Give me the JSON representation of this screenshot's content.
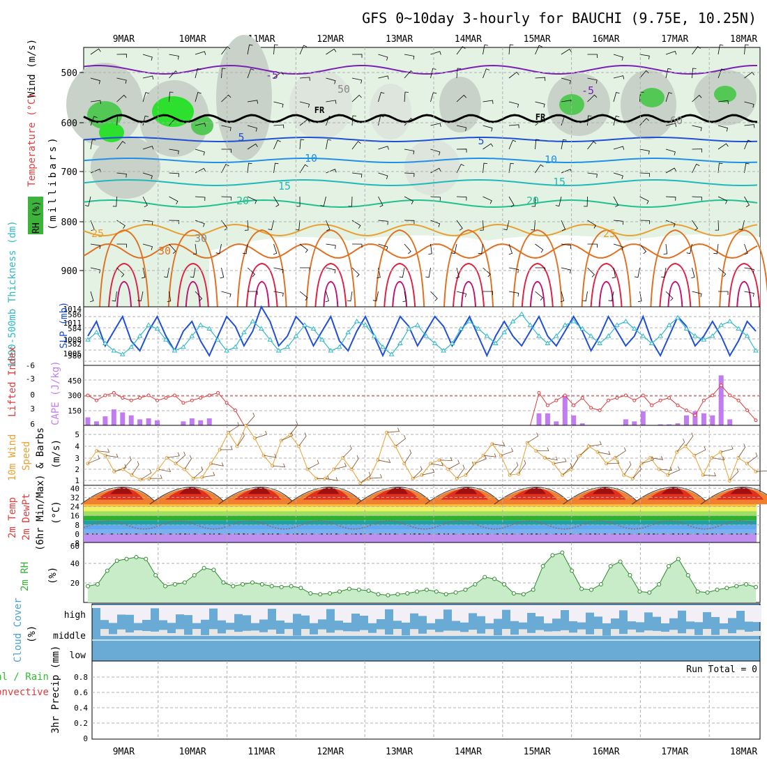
{
  "title": "GFS 0~10day 3-hourly for BAUCHI (9.75E, 10.25N)",
  "dates": [
    "9MAR",
    "10MAR",
    "11MAR",
    "12MAR",
    "13MAR",
    "14MAR",
    "15MAR",
    "16MAR",
    "17MAR",
    "18MAR"
  ],
  "colors": {
    "grid": "#b0b0b0",
    "purple": "#7a1fb5",
    "blue": "#1f4fd6",
    "teal": "#2fb8c8",
    "temp_red": "#e04040",
    "li_red": "#e03a3a",
    "cape": "#c27cf2",
    "orange": "#e8a030",
    "rh_green": "#37b037",
    "cloud_blue": "#6aabd6",
    "cloud_white": "#f2f0f6",
    "precip_green": "#2fbf2f"
  },
  "panels": {
    "upper_air": {
      "label_rh": "RH (%)",
      "label_temp": "Temperature (°C)",
      "label_wind": "Wind (m/s)",
      "axis_label": "(millibars)",
      "yticks": [
        "500",
        "600",
        "700",
        "800",
        "900"
      ],
      "contour_labels": [
        "-5",
        "FR",
        "5",
        "10",
        "15",
        "20",
        "25",
        "30",
        "FR",
        "-5",
        "5",
        "10",
        "15",
        "20",
        "25",
        "50",
        "30",
        "60"
      ]
    },
    "slp": {
      "label_thickness": "1000-500mb Thickness (dm)",
      "label_slp": "SLP (mb)",
      "left_ticks": [
        "586",
        "584",
        "582",
        "580"
      ],
      "right_ticks": [
        "1014",
        "1011",
        "1008",
        "1005"
      ]
    },
    "cape": {
      "label_li": "Lifted Index",
      "label_cape": "CAPE (J/kg)",
      "left_ticks": [
        "-6",
        "-3",
        "0",
        "3",
        "6"
      ],
      "right_ticks": [
        "450",
        "300",
        "150"
      ]
    },
    "wind10m": {
      "label_a": "10m Wind",
      "label_b": "Speed",
      "label_c": "& Barbs",
      "unit": "(m/s)",
      "ticks": [
        "5",
        "4",
        "3",
        "2",
        "1"
      ]
    },
    "temp2m": {
      "label_a": "2m Temp",
      "label_b": "2m DewPt",
      "label_c": "(6hr Min/Max)",
      "unit": "(°C)",
      "ticks": [
        "40",
        "32",
        "24",
        "16",
        "8",
        "0",
        "-8"
      ]
    },
    "rh2m": {
      "label": "2m RH",
      "unit": "(%)",
      "ticks": [
        "60",
        "40",
        "20"
      ]
    },
    "cloud": {
      "label": "Cloud Cover",
      "unit": "(%)",
      "levels": [
        "high",
        "middle",
        "low"
      ]
    },
    "precip": {
      "label_a": "3hr Precip (mm)",
      "label_b": "Total / Rain",
      "label_c": "Convective",
      "run_total": "Run Total = 0",
      "ticks": [
        "0.8",
        "0.6",
        "0.4",
        "0.2",
        "0"
      ]
    }
  },
  "chart_data": {
    "type": "line",
    "title": "GFS 0~10day 3-hourly for BAUCHI (9.75E, 10.25N)",
    "x": [
      "9MAR",
      "10MAR",
      "11MAR",
      "12MAR",
      "13MAR",
      "14MAR",
      "15MAR",
      "16MAR",
      "17MAR",
      "18MAR"
    ],
    "slp_mb": [
      1008,
      1011,
      1006,
      1009,
      1012,
      1007,
      1005,
      1009,
      1012,
      1008,
      1005,
      1009,
      1011,
      1007,
      1004,
      1008,
      1012,
      1010,
      1006,
      1009,
      1014,
      1011,
      1006,
      1008,
      1012,
      1010,
      1006,
      1009,
      1012,
      1007,
      1005,
      1009,
      1012,
      1008,
      1004,
      1008,
      1012,
      1010,
      1006,
      1009,
      1012,
      1010,
      1006,
      1009,
      1012,
      1008,
      1004,
      1008,
      1011,
      1008,
      1006,
      1009,
      1012,
      1008,
      1006,
      1009,
      1012,
      1009,
      1005,
      1008,
      1012,
      1009,
      1006,
      1008,
      1012,
      1007,
      1004,
      1008,
      1012,
      1010,
      1006,
      1008,
      1011,
      1008,
      1004,
      1007,
      1011,
      1009
    ],
    "thickness_dm": [
      582.5,
      583.5,
      582,
      581,
      580.5,
      581.5,
      583,
      584.5,
      584,
      582.5,
      581,
      581.5,
      583,
      584.5,
      584,
      582.5,
      581,
      581.5,
      583.5,
      585,
      584,
      582.5,
      581,
      581.5,
      583,
      584.5,
      584,
      582.5,
      581,
      581.5,
      583.5,
      585,
      584.5,
      583,
      581.5,
      580.5,
      582,
      584,
      584.5,
      583,
      582,
      581,
      582,
      584,
      585,
      584,
      583,
      582,
      583.5,
      585,
      586,
      584.5,
      583,
      582,
      583,
      584.5,
      585,
      584,
      583,
      582,
      583,
      584.5,
      585,
      584,
      583,
      582,
      583,
      584.5,
      585.5,
      584,
      583,
      582.5,
      583,
      584.5,
      585,
      584,
      583,
      581
    ],
    "lifted_index": [
      0,
      1,
      0,
      -0.5,
      0.5,
      1,
      0.5,
      0,
      1,
      0.5,
      0,
      1.5,
      1,
      0.5,
      0,
      -0.5,
      1.5,
      3,
      6,
      6,
      6,
      6,
      6,
      6,
      6,
      6,
      6,
      6,
      6,
      6,
      6,
      6,
      6,
      6,
      6,
      6,
      6,
      6,
      6,
      6,
      6,
      6,
      6,
      6,
      6,
      6,
      6,
      6,
      6,
      6,
      6,
      6,
      -0.5,
      2,
      1,
      0,
      2,
      0.5,
      2.5,
      3,
      1,
      0.5,
      0,
      1,
      0,
      2,
      1,
      0.5,
      2,
      3,
      4,
      1,
      0,
      -2,
      0,
      1,
      3,
      5
    ],
    "cape_j_kg": [
      80,
      40,
      90,
      160,
      130,
      100,
      60,
      70,
      50,
      0,
      0,
      40,
      70,
      50,
      70,
      0,
      0,
      0,
      0,
      0,
      0,
      0,
      0,
      0,
      0,
      0,
      0,
      0,
      0,
      0,
      0,
      0,
      0,
      0,
      0,
      0,
      0,
      0,
      0,
      0,
      0,
      0,
      0,
      0,
      0,
      0,
      0,
      0,
      0,
      0,
      0,
      0,
      120,
      120,
      40,
      300,
      100,
      20,
      0,
      0,
      0,
      0,
      60,
      40,
      140,
      0,
      10,
      10,
      20,
      100,
      140,
      120,
      100,
      500,
      60,
      0,
      0,
      0
    ],
    "wind10m_ms": [
      2.5,
      3.6,
      3.2,
      1.8,
      2,
      1.5,
      1.1,
      1.2,
      2,
      3,
      2.5,
      2,
      1.2,
      1.3,
      2.5,
      3.7,
      5.2,
      4,
      5.8,
      4.7,
      3.2,
      2.3,
      4.5,
      5,
      4,
      2,
      1.2,
      1.2,
      2,
      3,
      2,
      0.8,
      1.2,
      2.8,
      5.2,
      4,
      2.5,
      1.2,
      1.5,
      2.5,
      2.8,
      2,
      1.2,
      1.5,
      2.5,
      3.2,
      4.2,
      3.2,
      1.5,
      1.6,
      4.3,
      3.6,
      3,
      2.5,
      1.5,
      2,
      3.2,
      4,
      3.5,
      2.5,
      3,
      1.5,
      1.2,
      2.5,
      3,
      2,
      1.5,
      3.5,
      4,
      3.2,
      1.5,
      3,
      3.5,
      1,
      3,
      2.5,
      1.8
    ],
    "rh2m_pct": [
      18,
      20,
      35,
      46,
      48,
      50,
      48,
      30,
      18,
      20,
      22,
      30,
      38,
      36,
      22,
      18,
      20,
      22,
      20,
      18,
      17,
      18,
      16,
      10,
      9,
      10,
      12,
      15,
      14,
      13,
      9,
      8,
      9,
      10,
      12,
      14,
      12,
      9,
      11,
      14,
      20,
      28,
      26,
      20,
      10,
      9,
      14,
      40,
      52,
      55,
      35,
      15,
      14,
      20,
      40,
      45,
      30,
      12,
      11,
      20,
      40,
      48,
      30,
      12,
      11,
      14,
      16,
      18,
      20,
      17
    ]
  }
}
